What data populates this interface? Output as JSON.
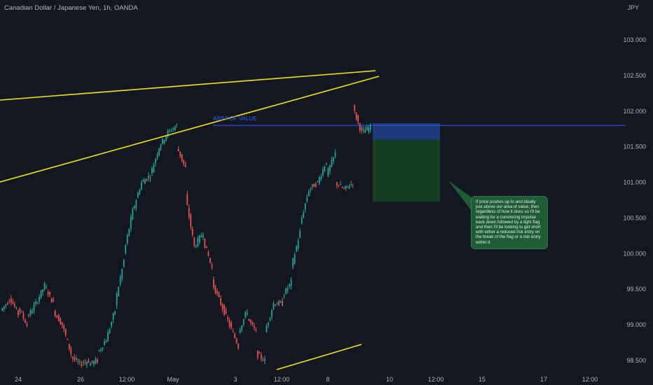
{
  "header": {
    "title": "Canadian Dollar / Japanese Yen, 1h, OANDA"
  },
  "chart_data": {
    "type": "candlestick",
    "currency": "JPY",
    "y_axis_ticks": [
      "103.000",
      "102.500",
      "102.000",
      "101.500",
      "101.000",
      "100.500",
      "100.000",
      "99.500",
      "99.000",
      "98.500"
    ],
    "x_axis_ticks": [
      "24",
      "26",
      "12:00",
      "May",
      "3",
      "12:00",
      "8",
      "10",
      "12:00",
      "15",
      "17",
      "12:00"
    ],
    "horizontal_line": {
      "label": "AREA OF VALUE",
      "price": 101.8,
      "color": "#2962ff"
    },
    "trend_lines_color": "#f5e400",
    "position": {
      "entry_zone": [
        101.6,
        101.83
      ],
      "target_zone": [
        100.73,
        101.6
      ],
      "entry_color": "#1e3a7a",
      "target_color": "#143d22"
    },
    "price_path": [
      [
        99.2,
        99.35
      ],
      [
        99.4,
        99.15
      ],
      [
        99.25,
        99.0
      ],
      [
        99.1,
        99.3
      ],
      [
        99.3,
        99.55
      ],
      [
        99.55,
        99.3
      ],
      [
        99.2,
        99.0
      ],
      [
        99.0,
        98.6
      ],
      [
        98.55,
        98.45
      ],
      [
        98.45,
        98.5
      ],
      [
        98.45,
        98.5
      ],
      [
        98.6,
        98.8
      ],
      [
        98.8,
        99.2
      ],
      [
        99.3,
        99.9
      ],
      [
        100.0,
        100.6
      ],
      [
        100.6,
        101.0
      ],
      [
        101.0,
        101.1
      ],
      [
        101.1,
        101.5
      ],
      [
        101.5,
        101.7
      ],
      [
        101.7,
        101.8
      ],
      [
        101.5,
        101.2
      ],
      [
        100.8,
        100.1
      ],
      [
        100.1,
        100.3
      ],
      [
        100.2,
        99.8
      ],
      [
        99.6,
        99.3
      ],
      [
        99.3,
        99.0
      ],
      [
        99.0,
        98.7
      ],
      [
        98.9,
        99.2
      ],
      [
        99.1,
        98.9
      ],
      [
        98.6,
        98.5
      ],
      [
        98.9,
        99.3
      ],
      [
        99.3,
        99.3
      ],
      [
        99.4,
        99.6
      ],
      [
        99.8,
        100.3
      ],
      [
        100.4,
        100.9
      ],
      [
        100.9,
        101.0
      ],
      [
        101.0,
        101.3
      ],
      [
        101.1,
        101.4
      ],
      [
        101.0,
        100.9
      ],
      [
        100.9,
        101.0
      ],
      [
        102.05,
        101.7
      ],
      [
        101.7,
        101.78
      ]
    ],
    "annotation": "If price pushes up to and ideally just above our area of value, then regardless of how it does so I'll be waiting for a convincing impulse back down followed by a tight flag and then I'll be looking to get short with either a reduced risk entry on the break of the flag or a risk entry within it."
  }
}
